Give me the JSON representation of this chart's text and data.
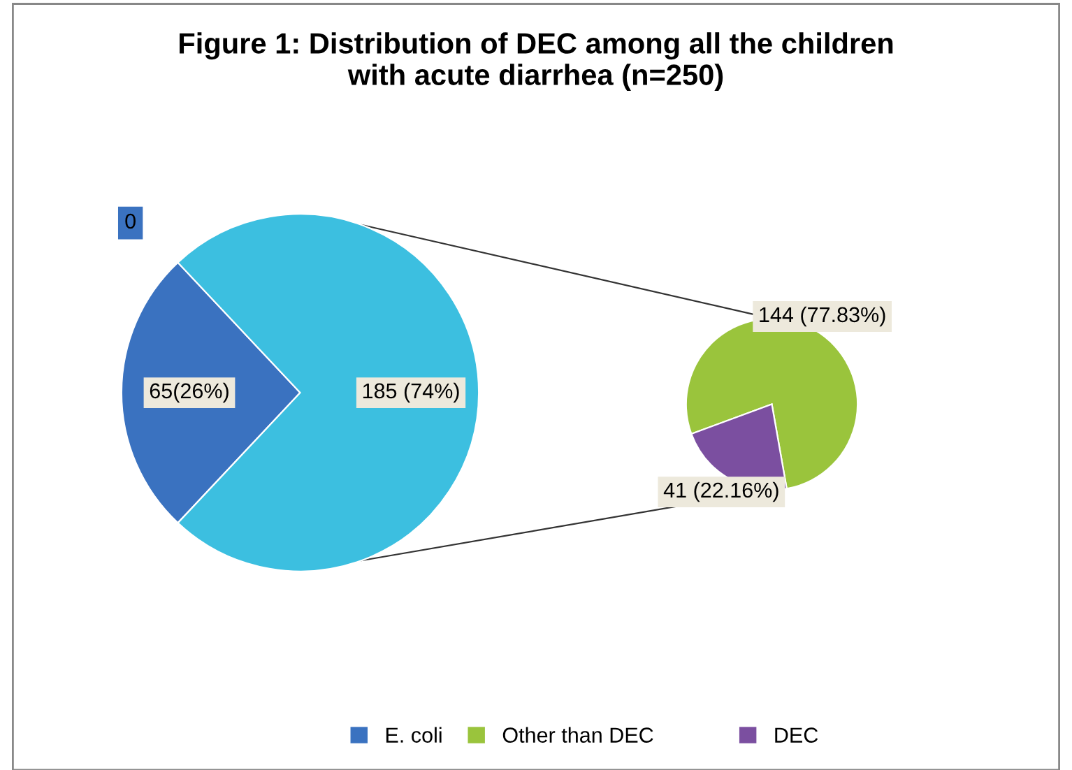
{
  "chart_data": [
    {
      "type": "pie",
      "title": "Figure 1: Distribution of DEC among all the children\nwith acute diarrhea (n=250)",
      "categories": [
        "E. coli",
        null
      ],
      "values": [
        65,
        185
      ],
      "colors": [
        "#3a72c0",
        "#3cbfe0"
      ],
      "value_labels": [
        "65(26%)",
        "185 (74%)"
      ],
      "annotations": [
        "0"
      ],
      "legend": "bottom"
    },
    {
      "type": "pie",
      "categories": [
        "Other than DEC",
        "DEC"
      ],
      "values": [
        144,
        41
      ],
      "colors": [
        "#9ac43c",
        "#7b4fa0"
      ],
      "value_labels": [
        "144 (77.83%)",
        "41 (22.16%)"
      ],
      "legend": "bottom"
    }
  ]
}
